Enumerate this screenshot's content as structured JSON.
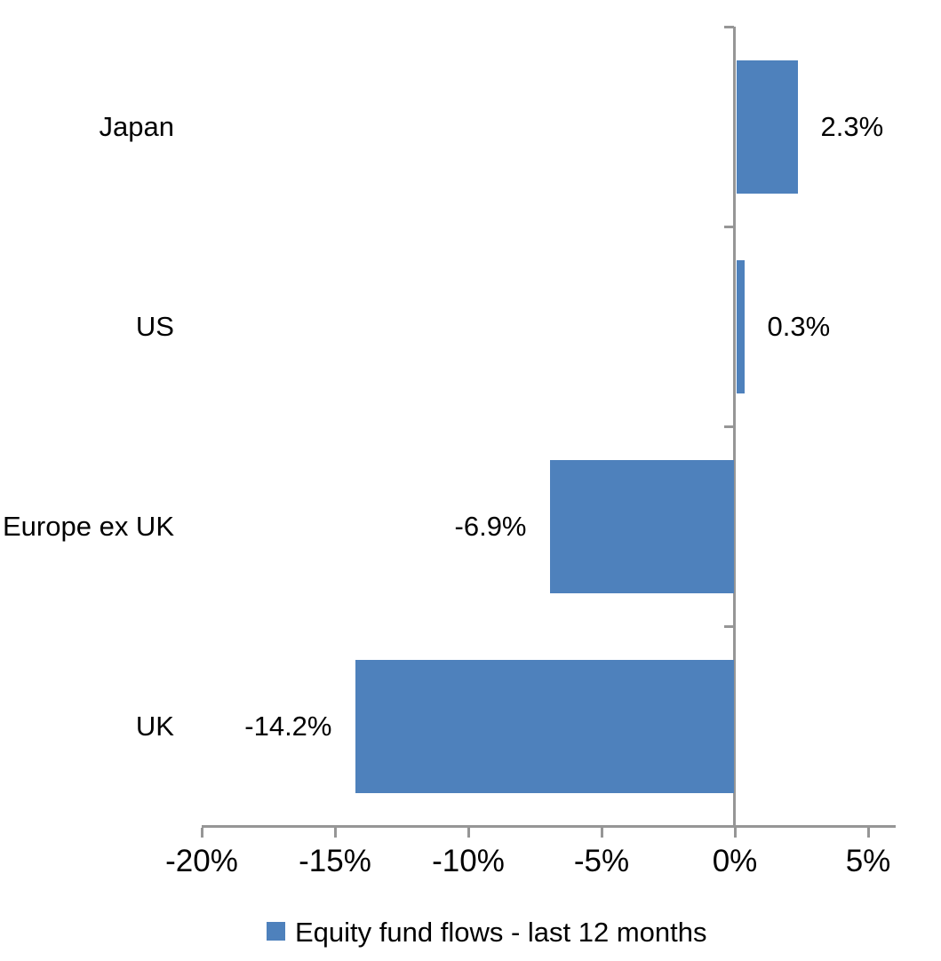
{
  "chart_data": {
    "type": "bar",
    "orientation": "horizontal",
    "title": "",
    "categories": [
      "Japan",
      "US",
      "Europe ex UK",
      "UK"
    ],
    "series": [
      {
        "name": "Equity fund flows - last 12 months",
        "values": [
          2.3,
          0.3,
          -6.9,
          -14.2
        ],
        "data_labels": [
          "2.3%",
          "0.3%",
          "-6.9%",
          "-14.2%"
        ]
      }
    ],
    "x_axis": {
      "min": -20,
      "max": 6,
      "tick_interval": 5,
      "ticks": [
        {
          "value": -20,
          "label": "-20%"
        },
        {
          "value": -15,
          "label": "-15%"
        },
        {
          "value": -10,
          "label": "-10%"
        },
        {
          "value": -5,
          "label": "-5%"
        },
        {
          "value": 0,
          "label": "0%"
        },
        {
          "value": 5,
          "label": "5%"
        }
      ]
    },
    "category_axis_cross_value": 0,
    "grid": false,
    "legend": {
      "position": "bottom",
      "label": "Equity fund flows - last 12 months",
      "swatch": "blue-square"
    },
    "colors": {
      "bar": "#4E81BC",
      "axis": "#969696",
      "text": "#000000"
    }
  }
}
